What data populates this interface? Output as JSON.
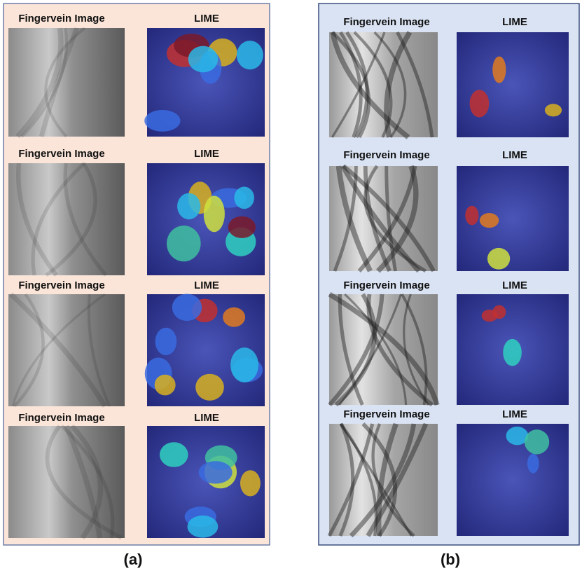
{
  "panels": [
    {
      "caption": "(a)",
      "rows": [
        {
          "left": "Fingervein Image",
          "right": "LIME"
        },
        {
          "left": "Fingervein Image",
          "right": "LIME"
        },
        {
          "left": "Fingervein Image",
          "right": "LIME"
        },
        {
          "left": "Fingervein Image",
          "right": "LIME"
        }
      ]
    },
    {
      "caption": "(b)",
      "rows": [
        {
          "left": "Fingervein Image",
          "right": "LIME"
        },
        {
          "left": "Fingervein Image",
          "right": "LIME"
        },
        {
          "left": "Fingervein Image",
          "right": "LIME"
        },
        {
          "left": "Fingervein Image",
          "right": "LIME"
        }
      ]
    }
  ]
}
